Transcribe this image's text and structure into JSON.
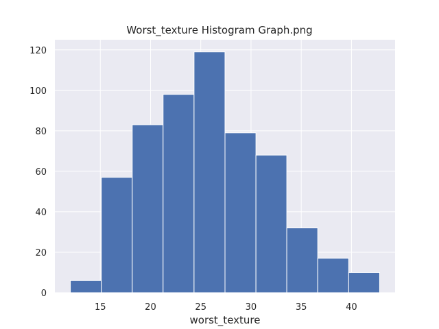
{
  "chart_data": {
    "type": "bar",
    "title": "Worst_texture Histogram Graph.png",
    "xlabel": "worst_texture",
    "ylabel": "",
    "bins": [
      {
        "x0": 12.02,
        "x1": 15.1,
        "count": 6
      },
      {
        "x0": 15.1,
        "x1": 18.18,
        "count": 57
      },
      {
        "x0": 18.18,
        "x1": 21.25,
        "count": 83
      },
      {
        "x0": 21.25,
        "x1": 24.33,
        "count": 98
      },
      {
        "x0": 24.33,
        "x1": 27.41,
        "count": 119
      },
      {
        "x0": 27.41,
        "x1": 30.49,
        "count": 79
      },
      {
        "x0": 30.49,
        "x1": 33.56,
        "count": 68
      },
      {
        "x0": 33.56,
        "x1": 36.64,
        "count": 32
      },
      {
        "x0": 36.64,
        "x1": 39.72,
        "count": 17
      },
      {
        "x0": 39.72,
        "x1": 42.8,
        "count": 10
      }
    ],
    "xlim": [
      10.48,
      44.34
    ],
    "ylim": [
      0,
      125
    ],
    "xticks": [
      15,
      20,
      25,
      30,
      35,
      40
    ],
    "yticks": [
      0,
      20,
      40,
      60,
      80,
      100,
      120
    ],
    "grid": true,
    "colors": {
      "bar": "#4c72b0",
      "background": "#eaeaf2",
      "grid": "#ffffff",
      "text": "#262626"
    }
  }
}
